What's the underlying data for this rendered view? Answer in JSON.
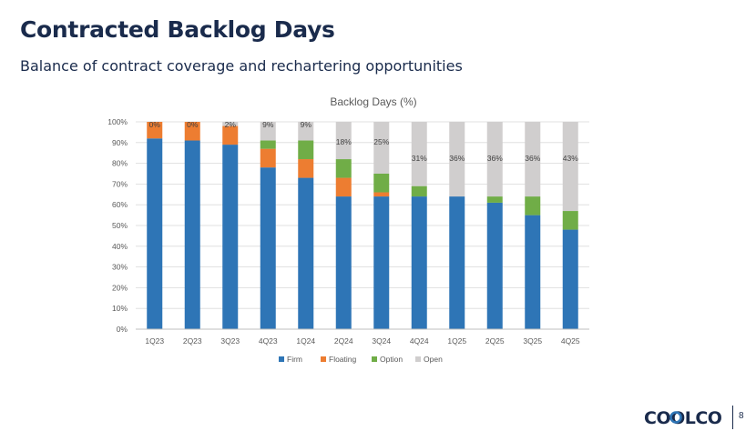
{
  "header": {
    "title": "Contracted Backlog Days",
    "subtitle": "Balance of contract coverage and rechartering opportunities"
  },
  "chart_data": {
    "type": "bar",
    "stacked": true,
    "title": "Backlog Days (%)",
    "xlabel": "",
    "ylabel": "",
    "ylim": [
      0,
      100
    ],
    "yticks": [
      "0%",
      "10%",
      "20%",
      "30%",
      "40%",
      "50%",
      "60%",
      "70%",
      "80%",
      "90%",
      "100%"
    ],
    "categories": [
      "1Q23",
      "2Q23",
      "3Q23",
      "4Q23",
      "1Q24",
      "2Q24",
      "3Q24",
      "4Q24",
      "1Q25",
      "2Q25",
      "3Q25",
      "4Q25"
    ],
    "series": [
      {
        "name": "Firm",
        "color": "#2e75b6",
        "values": [
          92,
          91,
          89,
          78,
          73,
          64,
          64,
          64,
          64,
          61,
          55,
          48
        ]
      },
      {
        "name": "Floating",
        "color": "#ed7d31",
        "values": [
          8,
          9,
          9,
          9,
          9,
          9,
          2,
          0,
          0,
          0,
          0,
          0
        ]
      },
      {
        "name": "Option",
        "color": "#70ad47",
        "values": [
          0,
          0,
          0,
          4,
          9,
          9,
          9,
          5,
          0,
          3,
          9,
          9
        ]
      },
      {
        "name": "Open",
        "color": "#d0cece",
        "values": [
          0,
          0,
          2,
          9,
          9,
          18,
          25,
          31,
          36,
          36,
          36,
          43
        ]
      }
    ],
    "open_labels": [
      "0%",
      "0%",
      "2%",
      "9%",
      "9%",
      "18%",
      "25%",
      "31%",
      "36%",
      "36%",
      "36%",
      "43%"
    ],
    "legend": "bottom"
  },
  "footer": {
    "logo_text": "COOLCO",
    "page_number": "8"
  }
}
